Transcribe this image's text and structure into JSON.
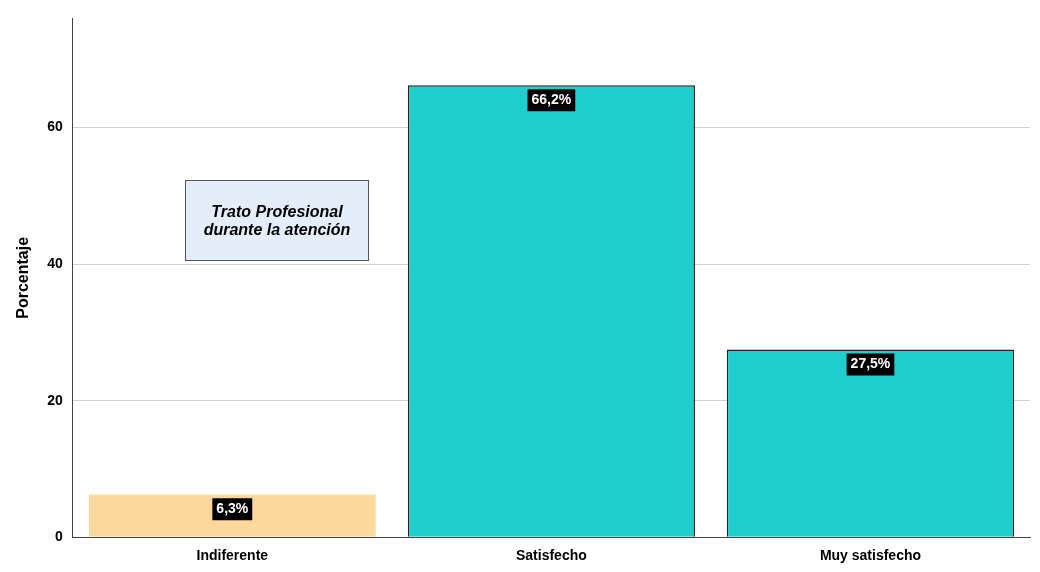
{
  "chart_data": {
    "type": "bar",
    "title": "Trato Profesional\ndurante la atención",
    "ylabel": "Porcentaje",
    "categories": [
      "Indiferente",
      "Satisfecho",
      "Muy satisfecho"
    ],
    "values": [
      6.3,
      66.2,
      27.5
    ],
    "colors": [
      "#fdd89c",
      "#1ecdcd",
      "#1ecdcd"
    ],
    "value_labels": [
      "6,3%",
      "66,2%",
      "27,5%"
    ],
    "ylim": [
      0,
      76
    ],
    "yticks": [
      0,
      20,
      40,
      60
    ],
    "grid": "y",
    "legend": false
  }
}
